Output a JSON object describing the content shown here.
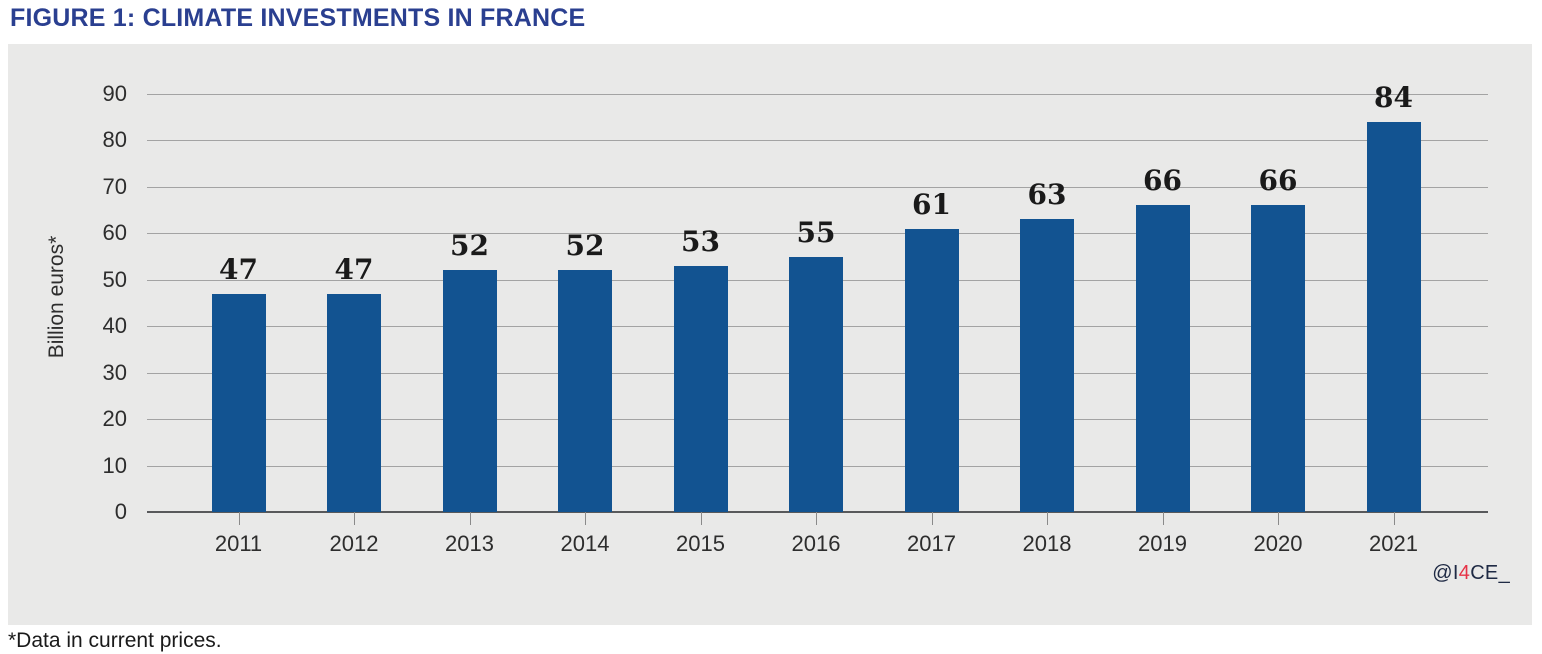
{
  "page": {
    "title": "FIGURE 1: CLIMATE INVESTMENTS IN FRANCE",
    "footnote": "*Data in current prices."
  },
  "attribution": {
    "prefix": "@I",
    "highlight": "4",
    "suffix": "CE_",
    "text_color": "#1F2A44",
    "highlight_color": "#E63246"
  },
  "chart_data": {
    "type": "bar",
    "title": "FIGURE 1: CLIMATE INVESTMENTS IN FRANCE",
    "categories": [
      "2011",
      "2012",
      "2013",
      "2014",
      "2015",
      "2016",
      "2017",
      "2018",
      "2019",
      "2020",
      "2021"
    ],
    "values": [
      47,
      47,
      52,
      52,
      53,
      55,
      61,
      63,
      66,
      66,
      84
    ],
    "xlabel": "",
    "ylabel": "Billion euros*",
    "ylim": [
      0,
      90
    ],
    "ytick_step": 10,
    "yticks": [
      0,
      10,
      20,
      30,
      40,
      50,
      60,
      70,
      80,
      90
    ],
    "grid": true,
    "legend": "none",
    "value_labels": true,
    "colors": {
      "bar": "#125391",
      "panel_background": "#E9E9E8",
      "gridline": "#A3A3A3",
      "axis_line": "#58595B",
      "value_label": "#1A1A1A",
      "tick_label": "#2D2D2D",
      "title": "#2A3F90"
    }
  }
}
